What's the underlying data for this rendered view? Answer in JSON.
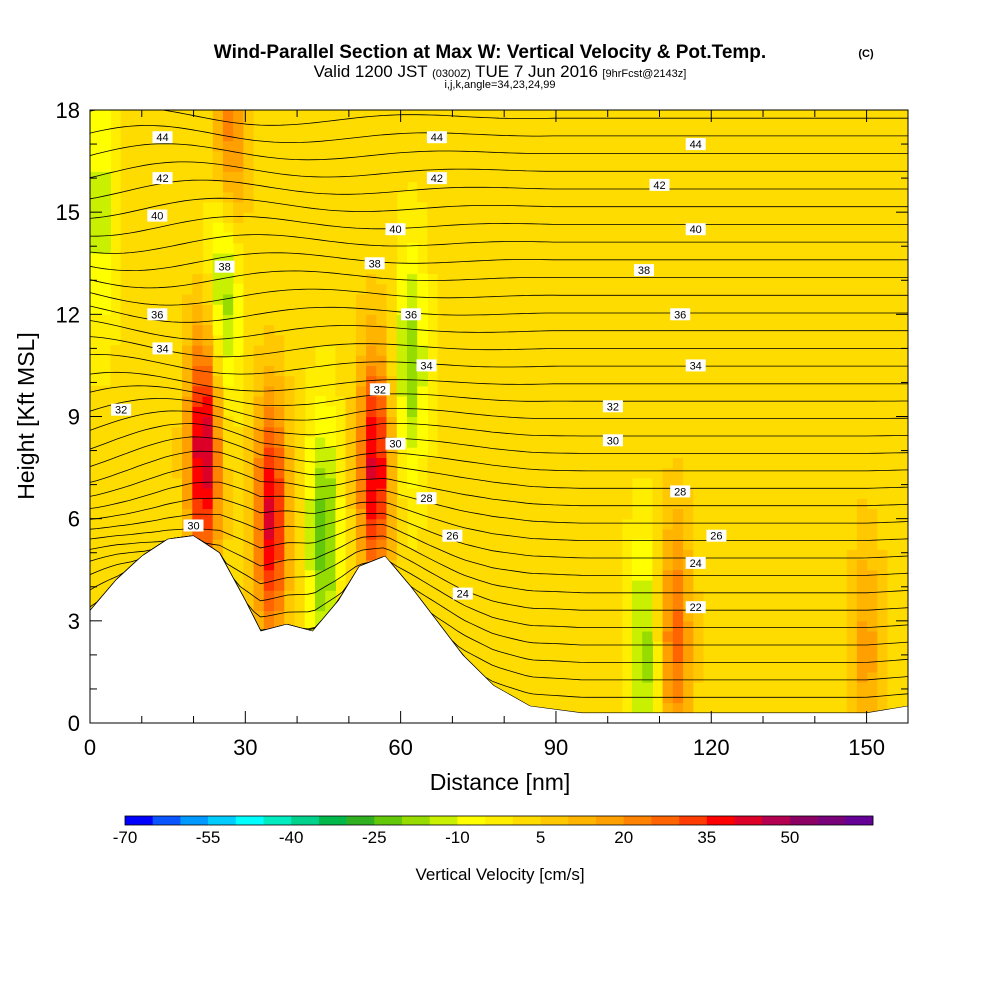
{
  "chart_data": {
    "type": "heatmap",
    "title": "Wind-Parallel Section at Max W: Vertical Velocity & Pot.Temp.",
    "title_mark": "(C)",
    "subtitle": {
      "valid": "Valid 1200 JST",
      "utc": "(0300Z)",
      "date": "TUE 7 Jun 2016",
      "forecast": "[9hrFcst@2143z]"
    },
    "indices": "i,j,k,angle=34,23,24,99",
    "xlabel": "Distance [nm]",
    "ylabel": "Height [Kft MSL]",
    "xlim": [
      0,
      158
    ],
    "ylim": [
      0,
      18
    ],
    "x_ticks": [
      0,
      30,
      60,
      90,
      120,
      150
    ],
    "y_ticks": [
      0,
      3,
      6,
      9,
      12,
      15,
      18
    ],
    "grid": false,
    "colorbar": {
      "label": "Vertical Velocity [cm/s]",
      "tick_labels": [
        "-70",
        "-55",
        "-40",
        "-25",
        "-10",
        "5",
        "20",
        "35",
        "50"
      ],
      "colors": [
        "#0000ff",
        "#0a55ff",
        "#0099ff",
        "#00ccff",
        "#00ffff",
        "#00ecc0",
        "#00d28c",
        "#00b84a",
        "#30b020",
        "#64c80a",
        "#96dc00",
        "#c8f000",
        "#ffff00",
        "#ffee00",
        "#ffdc00",
        "#ffc800",
        "#ffb400",
        "#ffa000",
        "#ff8200",
        "#ff6400",
        "#ff3c00",
        "#ff0000",
        "#dc0028",
        "#b40050",
        "#8c0064",
        "#780078",
        "#640096"
      ],
      "min": -70,
      "step": 5
    },
    "terrain_height_kft": [
      [
        0,
        3.3
      ],
      [
        5,
        4.2
      ],
      [
        10,
        4.9
      ],
      [
        15,
        5.4
      ],
      [
        20,
        5.5
      ],
      [
        25,
        5.0
      ],
      [
        30,
        3.6
      ],
      [
        33,
        2.7
      ],
      [
        38,
        2.9
      ],
      [
        43,
        2.7
      ],
      [
        48,
        3.6
      ],
      [
        52,
        4.6
      ],
      [
        57,
        4.9
      ],
      [
        62,
        4.0
      ],
      [
        67,
        3.0
      ],
      [
        72,
        2.0
      ],
      [
        78,
        1.1
      ],
      [
        85,
        0.5
      ],
      [
        95,
        0.3
      ],
      [
        110,
        0.3
      ],
      [
        130,
        0.3
      ],
      [
        150,
        0.3
      ],
      [
        158,
        0.5
      ]
    ],
    "vertical_velocity_features": [
      {
        "x": 22,
        "z": 8.0,
        "w": 45
      },
      {
        "x": 35,
        "z": 6.0,
        "w": 40
      },
      {
        "x": 55,
        "z": 7.5,
        "w": 40
      },
      {
        "x": 26,
        "z": 13.0,
        "w": -25
      },
      {
        "x": 62,
        "z": 10.5,
        "w": -20
      },
      {
        "x": 45,
        "z": 5.5,
        "w": -25
      },
      {
        "x": 107,
        "z": 2.0,
        "w": -20
      },
      {
        "x": 2,
        "z": 15.0,
        "w": -15
      },
      {
        "x": 113,
        "z": 2.5,
        "w": 25
      },
      {
        "x": 150,
        "z": 2.0,
        "w": 15
      },
      {
        "x": 27,
        "z": 17.0,
        "w": 25
      }
    ],
    "potential_temperature_labels": [
      {
        "value": "44",
        "x": 14,
        "z": 17.2
      },
      {
        "value": "44",
        "x": 67,
        "z": 17.2
      },
      {
        "value": "44",
        "x": 117,
        "z": 17.0
      },
      {
        "value": "42",
        "x": 14,
        "z": 16.0
      },
      {
        "value": "42",
        "x": 67,
        "z": 16.0
      },
      {
        "value": "42",
        "x": 110,
        "z": 15.8
      },
      {
        "value": "40",
        "x": 13,
        "z": 14.9
      },
      {
        "value": "40",
        "x": 59,
        "z": 14.5
      },
      {
        "value": "40",
        "x": 117,
        "z": 14.5
      },
      {
        "value": "38",
        "x": 26,
        "z": 13.4
      },
      {
        "value": "38",
        "x": 55,
        "z": 13.5
      },
      {
        "value": "38",
        "x": 107,
        "z": 13.3
      },
      {
        "value": "36",
        "x": 13,
        "z": 12.0
      },
      {
        "value": "36",
        "x": 62,
        "z": 12.0
      },
      {
        "value": "36",
        "x": 114,
        "z": 12.0
      },
      {
        "value": "34",
        "x": 14,
        "z": 11.0
      },
      {
        "value": "34",
        "x": 65,
        "z": 10.5
      },
      {
        "value": "34",
        "x": 117,
        "z": 10.5
      },
      {
        "value": "32",
        "x": 6,
        "z": 9.2
      },
      {
        "value": "32",
        "x": 56,
        "z": 9.8
      },
      {
        "value": "32",
        "x": 101,
        "z": 9.3
      },
      {
        "value": "30",
        "x": 20,
        "z": 5.8
      },
      {
        "value": "30",
        "x": 59,
        "z": 8.2
      },
      {
        "value": "30",
        "x": 101,
        "z": 8.3
      },
      {
        "value": "28",
        "x": 65,
        "z": 6.6
      },
      {
        "value": "28",
        "x": 114,
        "z": 6.8
      },
      {
        "value": "26",
        "x": 70,
        "z": 5.5
      },
      {
        "value": "26",
        "x": 121,
        "z": 5.5
      },
      {
        "value": "24",
        "x": 72,
        "z": 3.8
      },
      {
        "value": "24",
        "x": 117,
        "z": 4.7
      },
      {
        "value": "22",
        "x": 117,
        "z": 3.4
      }
    ]
  }
}
